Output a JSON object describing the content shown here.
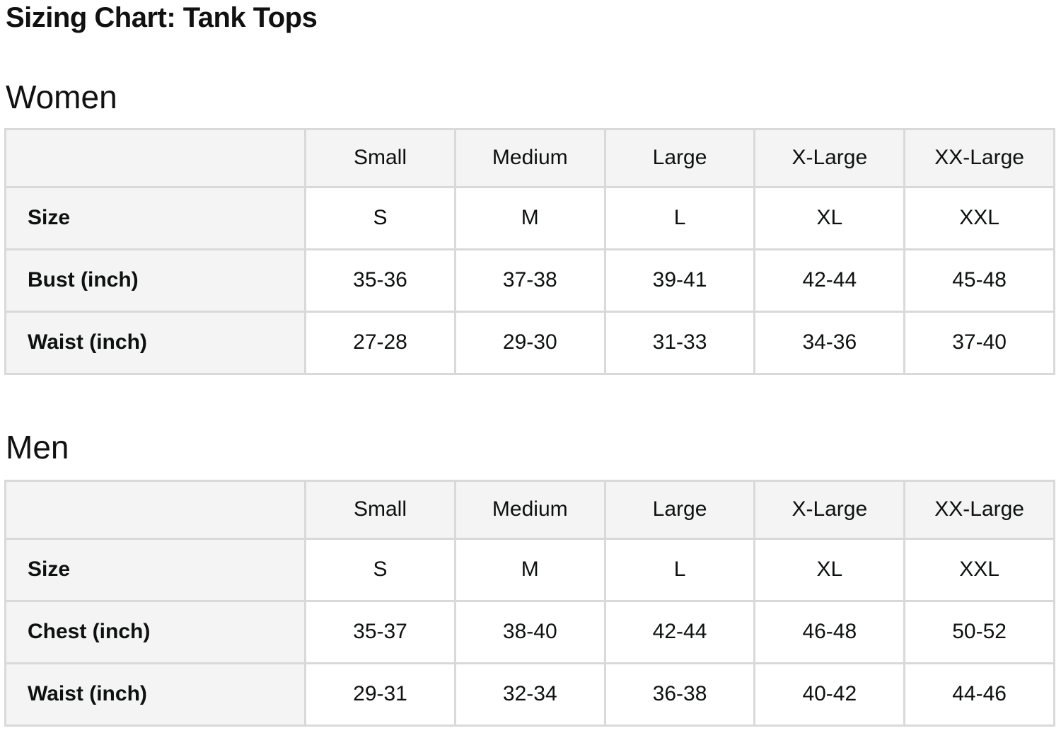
{
  "page": {
    "title": "Sizing Chart: Tank Tops"
  },
  "colors": {
    "text": "#0F1111",
    "heading_text": "#111111",
    "table_header_bg": "#F4F4F4",
    "table_border": "#D9D9D9",
    "cell_bg": "#FFFFFF",
    "page_bg": "#FFFFFF"
  },
  "sections": [
    {
      "heading": "Women",
      "columns": [
        "Small",
        "Medium",
        "Large",
        "X-Large",
        "XX-Large"
      ],
      "rows": [
        {
          "label": "Size",
          "values": [
            "S",
            "M",
            "L",
            "XL",
            "XXL"
          ]
        },
        {
          "label": "Bust (inch)",
          "values": [
            "35-36",
            "37-38",
            "39-41",
            "42-44",
            "45-48"
          ]
        },
        {
          "label": "Waist (inch)",
          "values": [
            "27-28",
            "29-30",
            "31-33",
            "34-36",
            "37-40"
          ]
        }
      ]
    },
    {
      "heading": "Men",
      "columns": [
        "Small",
        "Medium",
        "Large",
        "X-Large",
        "XX-Large"
      ],
      "rows": [
        {
          "label": "Size",
          "values": [
            "S",
            "M",
            "L",
            "XL",
            "XXL"
          ]
        },
        {
          "label": "Chest (inch)",
          "values": [
            "35-37",
            "38-40",
            "42-44",
            "46-48",
            "50-52"
          ]
        },
        {
          "label": "Waist (inch)",
          "values": [
            "29-31",
            "32-34",
            "36-38",
            "40-42",
            "44-46"
          ]
        }
      ]
    }
  ]
}
